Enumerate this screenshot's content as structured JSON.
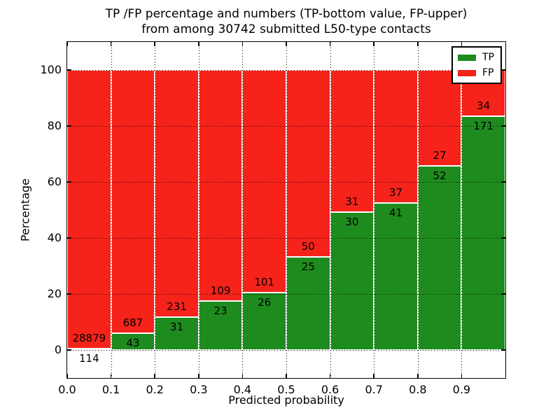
{
  "chart_data": {
    "type": "bar",
    "subtype": "stacked-percentage-histogram",
    "title": "TP /FP percentage and numbers (TP-bottom value, FP-upper)\nfrom among 30742 submitted L50-type contacts",
    "xlabel": "Predicted probability",
    "ylabel": "Percentage",
    "xlim": [
      0.0,
      1.0
    ],
    "ylim": [
      -10,
      110
    ],
    "xtick_labels": [
      "0.0",
      "0.1",
      "0.2",
      "0.3",
      "0.4",
      "0.5",
      "0.6",
      "0.7",
      "0.8",
      "0.9"
    ],
    "yticks": [
      0,
      20,
      40,
      60,
      80,
      100
    ],
    "bin_edges": [
      0.0,
      0.1,
      0.2,
      0.3,
      0.4,
      0.5,
      0.6,
      0.7,
      0.8,
      0.9,
      1.0
    ],
    "grid": true,
    "background": "#ffffff",
    "axis_color": "#000000",
    "bar_edge_color": "#ffffff",
    "series": [
      {
        "name": "TP",
        "color": "#1e8b1e",
        "counts": [
          114,
          43,
          31,
          23,
          26,
          25,
          30,
          41,
          52,
          171
        ],
        "percent": [
          0.39,
          5.89,
          11.83,
          17.42,
          20.47,
          33.33,
          49.18,
          52.56,
          65.82,
          83.41
        ]
      },
      {
        "name": "FP",
        "color": "#f5231a",
        "counts": [
          28879,
          687,
          231,
          109,
          101,
          50,
          31,
          37,
          27,
          34
        ],
        "percent": [
          99.61,
          94.11,
          88.17,
          82.58,
          79.53,
          66.67,
          50.82,
          47.44,
          34.18,
          16.59
        ]
      }
    ],
    "legend": {
      "position": "upper right",
      "items": [
        {
          "label": "TP",
          "color": "#1e8b1e"
        },
        {
          "label": "FP",
          "color": "#f5231a"
        }
      ]
    }
  }
}
